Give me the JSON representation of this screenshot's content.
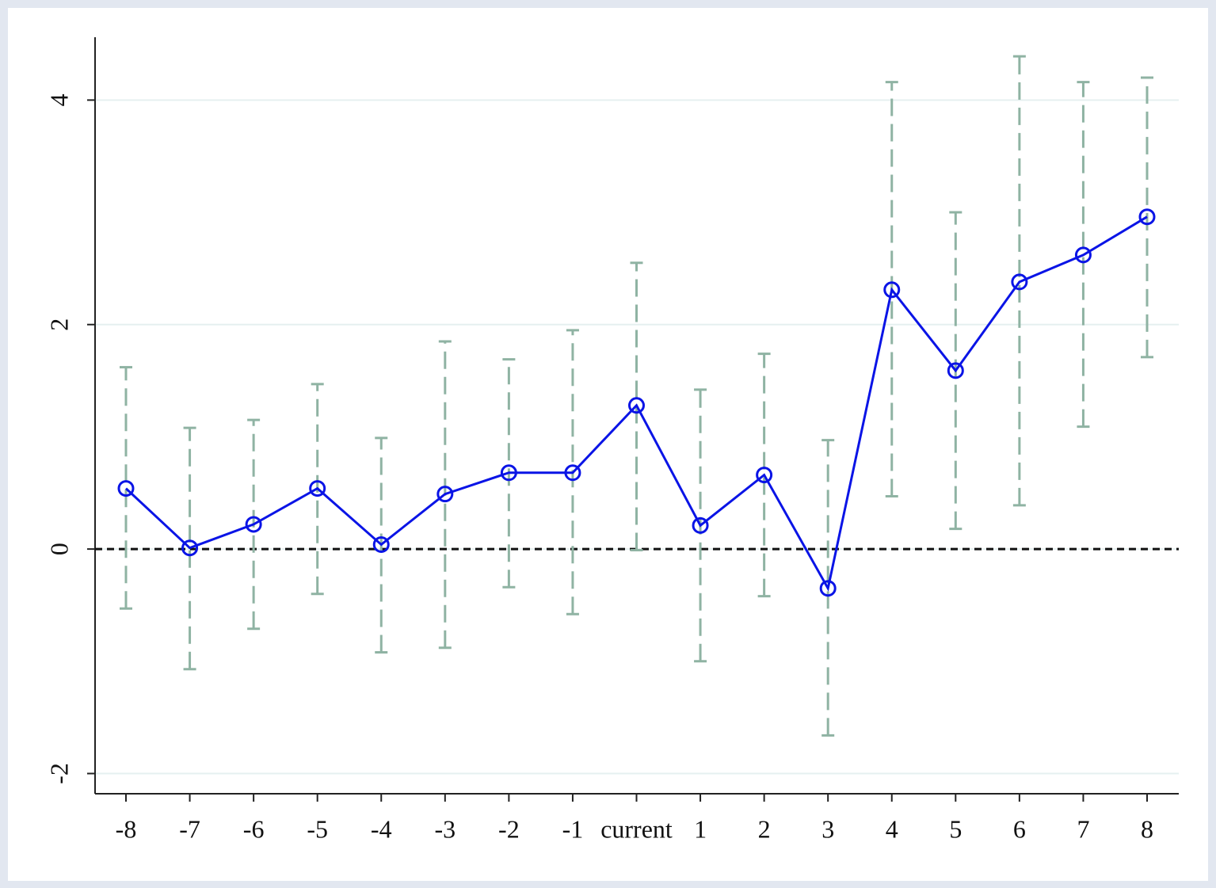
{
  "chart_data": {
    "type": "errorbar_line",
    "categories": [
      "-8",
      "-7",
      "-6",
      "-5",
      "-4",
      "-3",
      "-2",
      "-1",
      "current",
      "1",
      "2",
      "3",
      "4",
      "5",
      "6",
      "7",
      "8"
    ],
    "series": [
      {
        "color": "#0a14e6",
        "values": [
          0.54,
          0.01,
          0.22,
          0.54,
          0.04,
          0.49,
          0.68,
          0.68,
          1.28,
          0.21,
          0.66,
          -0.35,
          2.31,
          1.59,
          2.38,
          2.62,
          2.96
        ],
        "ci_lower": [
          -0.53,
          -1.07,
          -0.71,
          -0.4,
          -0.92,
          -0.88,
          -0.34,
          -0.58,
          -0.01,
          -1.0,
          -0.42,
          -1.66,
          0.47,
          0.18,
          0.39,
          1.09,
          1.71
        ],
        "ci_upper": [
          1.62,
          1.08,
          1.15,
          1.47,
          0.99,
          1.85,
          1.69,
          1.95,
          2.55,
          1.42,
          1.74,
          0.97,
          4.16,
          3.0,
          4.39,
          4.16,
          4.2
        ],
        "ci_color": "#8fb3a3"
      }
    ],
    "ylim": [
      -2.18,
      4.56
    ],
    "yticks": [
      -2,
      0,
      2,
      4
    ],
    "grid": true,
    "reference_line": 0
  }
}
